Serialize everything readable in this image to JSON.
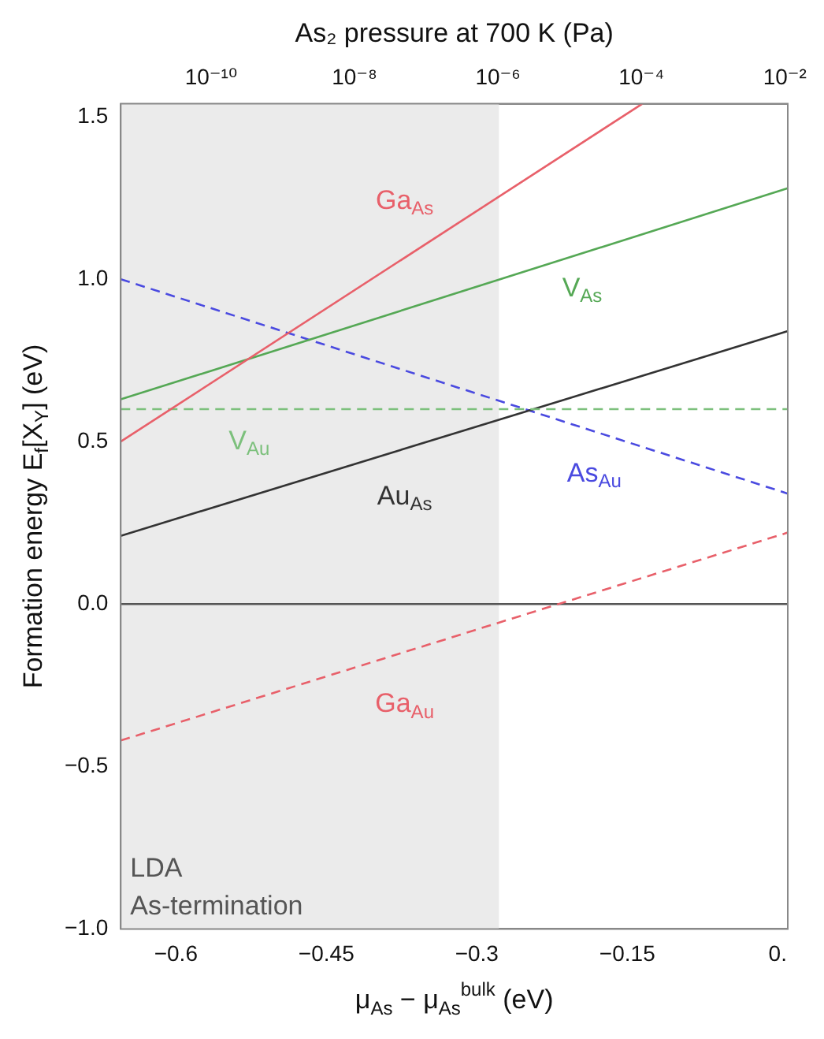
{
  "chart_data": {
    "type": "line",
    "xlabel": "μ$_{As}$ − μ$_{As}$$^{bulk}$ (eV)",
    "ylabel": "Formation energy E$_{f}$[X$_{Y}$] (eV)",
    "x2label": "As₂ pressure at 700 K (Pa)",
    "xlim": [
      -0.655,
      0.01
    ],
    "xticks": [
      {
        "value": -0.6,
        "label": "−0.6"
      },
      {
        "value": -0.45,
        "label": "−0.45"
      },
      {
        "value": -0.3,
        "label": "−0.3"
      },
      {
        "value": -0.15,
        "label": "−0.15"
      },
      {
        "value": 0,
        "label": "0."
      }
    ],
    "x2lim": [
      5.5e-12,
      0.011
    ],
    "x2ticks": [
      {
        "value": 1e-10,
        "label": "10⁻¹⁰"
      },
      {
        "value": 1e-08,
        "label": "10⁻⁸"
      },
      {
        "value": 1e-06,
        "label": "10⁻⁶"
      },
      {
        "value": 0.0001,
        "label": "10⁻⁴"
      },
      {
        "value": 0.01,
        "label": "10⁻²"
      }
    ],
    "log": "x2",
    "ylim": [
      -1.0,
      1.54
    ],
    "yticks": [
      {
        "value": -1,
        "label": "−1.0"
      },
      {
        "value": -0.5,
        "label": "−0.5"
      },
      {
        "value": 0,
        "label": "0.0"
      },
      {
        "value": 0.5,
        "label": "0.5"
      },
      {
        "value": 1,
        "label": "1.0"
      },
      {
        "value": 1.5,
        "label": "1.5"
      }
    ],
    "grid": false,
    "legend": false,
    "marker": "none",
    "series": [
      {
        "name": "Ga$_{As}$",
        "color": "#e8606a",
        "line_style": "solid",
        "x": [
          -0.655,
          -0.135
        ],
        "values": [
          0.5,
          1.54
        ]
      },
      {
        "name": "V$_{As}$",
        "color": "#55a855",
        "line_style": "solid",
        "x": [
          -0.655,
          0.01
        ],
        "values": [
          0.63,
          1.28
        ]
      },
      {
        "name": "V$_{Au}$",
        "color": "#7cc07c",
        "line_style": "dashed",
        "x": [
          -0.655,
          0.01
        ],
        "values": [
          0.6,
          0.6
        ]
      },
      {
        "name": "Au$_{As}$",
        "color": "#333333",
        "line_style": "solid",
        "x": [
          -0.655,
          0.01
        ],
        "values": [
          0.21,
          0.84
        ]
      },
      {
        "name": "As$_{Au}$",
        "color": "#4a4ae0",
        "line_style": "dashed",
        "x": [
          -0.655,
          0.01
        ],
        "values": [
          1.0,
          0.34
        ]
      },
      {
        "name": "Ga$_{Au}$",
        "color": "#e8606a",
        "line_style": "dashed",
        "x": [
          -0.655,
          0.01
        ],
        "values": [
          -0.42,
          0.22
        ]
      }
    ],
    "ref_lines": [
      {
        "axis": "y",
        "value": 0,
        "color": "#555555",
        "line_style": "solid"
      }
    ],
    "bands": [
      {
        "axis": "x",
        "from": -0.655,
        "to": -0.278,
        "color": "#ebebeb"
      }
    ],
    "annotations": [
      "LDA",
      "As-termination"
    ]
  }
}
